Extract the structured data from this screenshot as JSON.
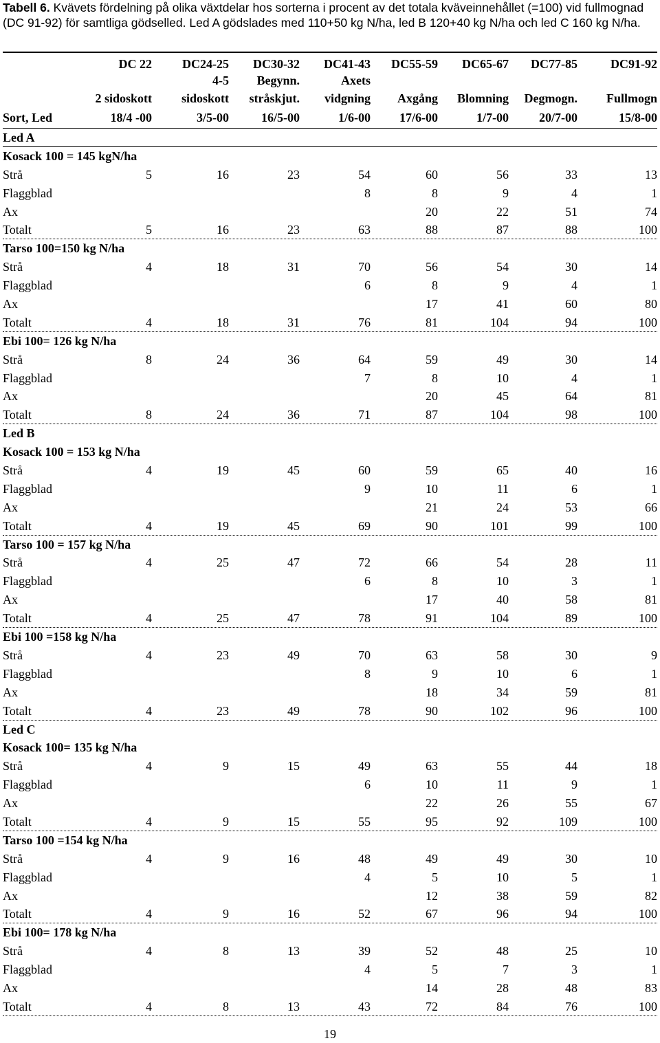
{
  "caption": {
    "label": "Tabell 6.",
    "text": " Kvävets fördelning på olika växtdelar hos sorterna i procent av det totala kväveinnehållet (=100) vid fullmognad (DC 91-92) för samtliga gödselled. Led A gödslades med 110+50 kg N/ha, led B 120+40 kg N/ha och led C 160 kg N/ha."
  },
  "headers": [
    {
      "code": "DC 22",
      "line1": "",
      "line2": "2 sidoskott"
    },
    {
      "code": "DC24-25",
      "line1": "4-5",
      "line2": "sidoskott"
    },
    {
      "code": "DC30-32",
      "line1": "Begynn.",
      "line2": "stråskjut."
    },
    {
      "code": "DC41-43",
      "line1": "Axets",
      "line2": "vidgning"
    },
    {
      "code": "DC55-59",
      "line1": "",
      "line2": "Axgång"
    },
    {
      "code": "DC65-67",
      "line1": "",
      "line2": "Blomning"
    },
    {
      "code": "DC77-85",
      "line1": "",
      "line2": "Degmogn."
    },
    {
      "code": "DC91-92",
      "line1": "",
      "line2": "Fullmogn"
    }
  ],
  "date_row": {
    "label": "Sort, Led",
    "dates": [
      "18/4 -00",
      "3/5-00",
      "16/5-00",
      "1/6-00",
      "17/6-00",
      "1/7-00",
      "20/7-00",
      "15/8-00"
    ]
  },
  "groups": [
    {
      "led": "Led A",
      "varieties": [
        {
          "name": "Kosack 100 = 145 kgN/ha",
          "rows": [
            {
              "label": "Strå",
              "values": [
                "5",
                "16",
                "23",
                "54",
                "60",
                "56",
                "33",
                "13"
              ]
            },
            {
              "label": "Flaggblad",
              "values": [
                "",
                "",
                "",
                "8",
                "8",
                "9",
                "4",
                "1"
              ]
            },
            {
              "label": "Ax",
              "values": [
                "",
                "",
                "",
                "",
                "20",
                "22",
                "51",
                "74"
              ]
            },
            {
              "label": "Totalt",
              "values": [
                "5",
                "16",
                "23",
                "63",
                "88",
                "87",
                "88",
                "100"
              ]
            }
          ]
        },
        {
          "name": "Tarso 100=150 kg N/ha",
          "rows": [
            {
              "label": "Strå",
              "values": [
                "4",
                "18",
                "31",
                "70",
                "56",
                "54",
                "30",
                "14"
              ]
            },
            {
              "label": "Flaggblad",
              "values": [
                "",
                "",
                "",
                "6",
                "8",
                "9",
                "4",
                "1"
              ]
            },
            {
              "label": "Ax",
              "values": [
                "",
                "",
                "",
                "",
                "17",
                "41",
                "60",
                "80"
              ]
            },
            {
              "label": "Totalt",
              "values": [
                "4",
                "18",
                "31",
                "76",
                "81",
                "104",
                "94",
                "100"
              ]
            }
          ]
        },
        {
          "name": "Ebi 100= 126 kg N/ha",
          "rows": [
            {
              "label": "Strå",
              "values": [
                "8",
                "24",
                "36",
                "64",
                "59",
                "49",
                "30",
                "14"
              ]
            },
            {
              "label": "Flaggblad",
              "values": [
                "",
                "",
                "",
                "7",
                "8",
                "10",
                "4",
                "1"
              ]
            },
            {
              "label": "Ax",
              "values": [
                "",
                "",
                "",
                "",
                "20",
                "45",
                "64",
                "81"
              ]
            },
            {
              "label": "Totalt",
              "values": [
                "8",
                "24",
                "36",
                "71",
                "87",
                "104",
                "98",
                "100"
              ]
            }
          ]
        }
      ]
    },
    {
      "led": "Led B",
      "varieties": [
        {
          "name": "Kosack 100 = 153 kg N/ha",
          "rows": [
            {
              "label": "Strå",
              "values": [
                "4",
                "19",
                "45",
                "60",
                "59",
                "65",
                "40",
                "16"
              ]
            },
            {
              "label": "Flaggblad",
              "values": [
                "",
                "",
                "",
                "9",
                "10",
                "11",
                "6",
                "1"
              ]
            },
            {
              "label": "Ax",
              "values": [
                "",
                "",
                "",
                "",
                "21",
                "24",
                "53",
                "66"
              ]
            },
            {
              "label": "Totalt",
              "values": [
                "4",
                "19",
                "45",
                "69",
                "90",
                "101",
                "99",
                "100"
              ]
            }
          ]
        },
        {
          "name": "Tarso 100 = 157 kg N/ha",
          "rows": [
            {
              "label": "Strå",
              "values": [
                "4",
                "25",
                "47",
                "72",
                "66",
                "54",
                "28",
                "11"
              ]
            },
            {
              "label": "Flaggblad",
              "values": [
                "",
                "",
                "",
                "6",
                "8",
                "10",
                "3",
                "1"
              ]
            },
            {
              "label": "Ax",
              "values": [
                "",
                "",
                "",
                "",
                "17",
                "40",
                "58",
                "81"
              ]
            },
            {
              "label": "Totalt",
              "values": [
                "4",
                "25",
                "47",
                "78",
                "91",
                "104",
                "89",
                "100"
              ]
            }
          ]
        },
        {
          "name": "Ebi 100 =158 kg N/ha",
          "rows": [
            {
              "label": "Strå",
              "values": [
                "4",
                "23",
                "49",
                "70",
                "63",
                "58",
                "30",
                "9"
              ]
            },
            {
              "label": "Flaggblad",
              "values": [
                "",
                "",
                "",
                "8",
                "9",
                "10",
                "6",
                "1"
              ]
            },
            {
              "label": "Ax",
              "values": [
                "",
                "",
                "",
                "",
                "18",
                "34",
                "59",
                "81"
              ]
            },
            {
              "label": "Totalt",
              "values": [
                "4",
                "23",
                "49",
                "78",
                "90",
                "102",
                "96",
                "100"
              ]
            }
          ]
        }
      ]
    },
    {
      "led": "Led C",
      "varieties": [
        {
          "name": "Kosack 100= 135 kg N/ha",
          "rows": [
            {
              "label": "Strå",
              "values": [
                "4",
                "9",
                "15",
                "49",
                "63",
                "55",
                "44",
                "18"
              ]
            },
            {
              "label": "Flaggblad",
              "values": [
                "",
                "",
                "",
                "6",
                "10",
                "11",
                "9",
                "1"
              ]
            },
            {
              "label": "Ax",
              "values": [
                "",
                "",
                "",
                "",
                "22",
                "26",
                "55",
                "67"
              ]
            },
            {
              "label": "Totalt",
              "values": [
                "4",
                "9",
                "15",
                "55",
                "95",
                "92",
                "109",
                "100"
              ]
            }
          ]
        },
        {
          "name": "Tarso 100 =154 kg N/ha",
          "rows": [
            {
              "label": "Strå",
              "values": [
                "4",
                "9",
                "16",
                "48",
                "49",
                "49",
                "30",
                "10"
              ]
            },
            {
              "label": "Flaggblad",
              "values": [
                "",
                "",
                "",
                "4",
                "5",
                "10",
                "5",
                "1"
              ]
            },
            {
              "label": "Ax",
              "values": [
                "",
                "",
                "",
                "",
                "12",
                "38",
                "59",
                "82"
              ]
            },
            {
              "label": "Totalt",
              "values": [
                "4",
                "9",
                "16",
                "52",
                "67",
                "96",
                "94",
                "100"
              ]
            }
          ]
        },
        {
          "name": "Ebi 100= 178 kg N/ha",
          "rows": [
            {
              "label": "Strå",
              "values": [
                "4",
                "8",
                "13",
                "39",
                "52",
                "48",
                "25",
                "10"
              ]
            },
            {
              "label": "Flaggblad",
              "values": [
                "",
                "",
                "",
                "4",
                "5",
                "7",
                "3",
                "1"
              ]
            },
            {
              "label": "Ax",
              "values": [
                "",
                "",
                "",
                "",
                "14",
                "28",
                "48",
                "83"
              ]
            },
            {
              "label": "Totalt",
              "values": [
                "4",
                "8",
                "13",
                "43",
                "72",
                "84",
                "76",
                "100"
              ]
            }
          ]
        }
      ]
    }
  ],
  "page_number": "19"
}
